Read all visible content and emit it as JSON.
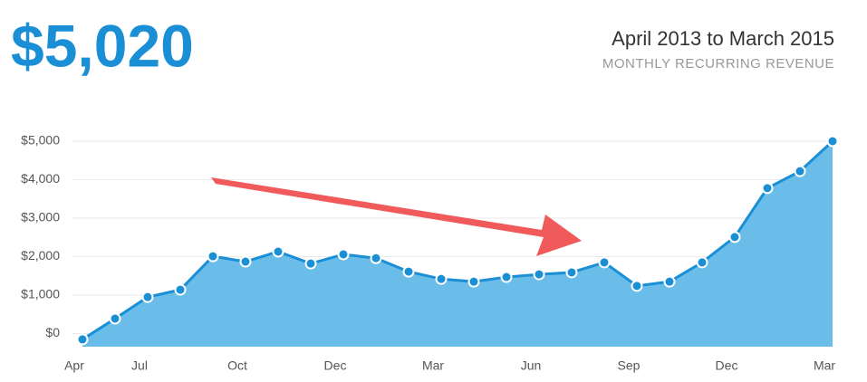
{
  "chart_data": {
    "type": "area",
    "headline": "$5,020",
    "title": "April 2013 to March 2015",
    "subtitle": "MONTHLY RECURRING REVENUE",
    "categories": [
      "Apr",
      null,
      "Jul",
      null,
      null,
      "Oct",
      null,
      null,
      "Dec",
      null,
      null,
      "Mar",
      null,
      null,
      "Jun",
      null,
      null,
      "Sep",
      null,
      null,
      "Dec",
      null,
      null,
      "Mar"
    ],
    "values": [
      -150,
      390,
      950,
      1140,
      2010,
      1870,
      2130,
      1820,
      2060,
      1960,
      1610,
      1420,
      1350,
      1470,
      1540,
      1590,
      1850,
      1240,
      1350,
      1850,
      2510,
      3780,
      4220,
      5000
    ],
    "color": "#1a8fd6",
    "fill": "#6bbde9",
    "ylim": [
      -340,
      5000
    ],
    "yticks": [
      {
        "value": 0,
        "label": "$0"
      },
      {
        "value": 1000,
        "label": "$1,000"
      },
      {
        "value": 2000,
        "label": "$2,000"
      },
      {
        "value": 3000,
        "label": "$3,000"
      },
      {
        "value": 4000,
        "label": "$4,000"
      },
      {
        "value": 5000,
        "label": "$5,000"
      }
    ],
    "grid": true
  }
}
